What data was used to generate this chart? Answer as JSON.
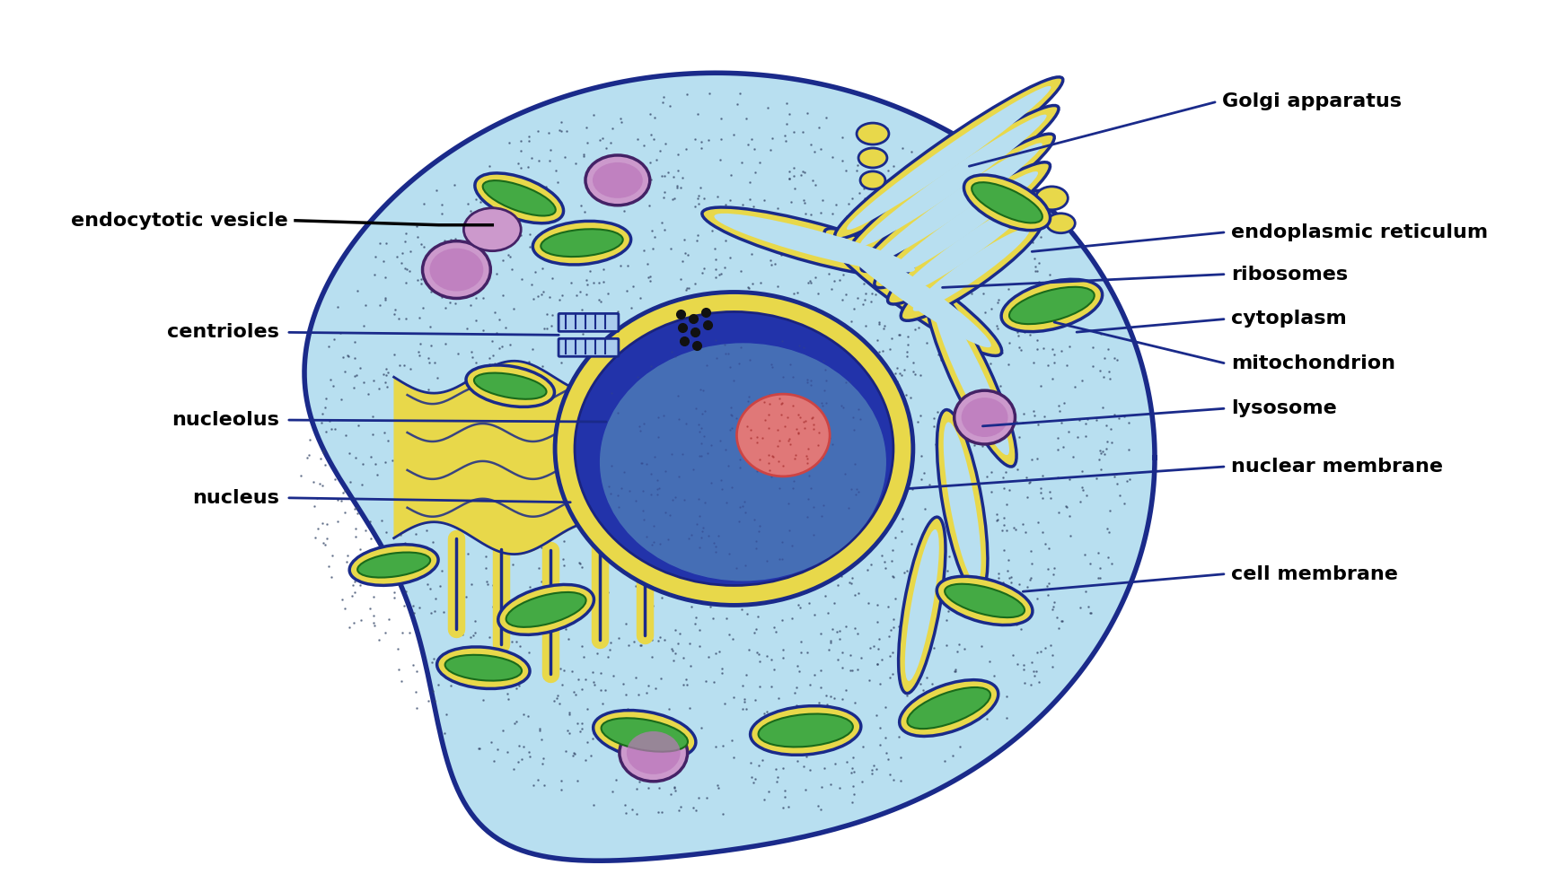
{
  "background_color": "#ffffff",
  "cell_outer_edge": "#1a2a8a",
  "cell_fill_light": "#b8dff0",
  "cell_fill_mid": "#8ec8e8",
  "nucleus_envelope_color": "#e8d84a",
  "nucleus_inner_color": "#2233aa",
  "nucleus_light_region": "#7ab8d8",
  "nucleolus_color": "#dd8888",
  "er_yellow": "#e8d84a",
  "er_edge": "#1a2a8a",
  "golgi_yellow": "#e8d84a",
  "golgi_edge": "#1a2a8a",
  "mito_outer": "#e8d84a",
  "mito_inner": "#3aaa44",
  "mito_edge": "#1a2a8a",
  "lysosome_fill": "#cc99cc",
  "lysosome_edge": "#442266",
  "ribosome_color": "#111122",
  "dot_color": "#334466",
  "label_color": "#000000",
  "line_color_right": "#1a2a8a",
  "line_color_left_vesicle": "#000000",
  "line_color_left": "#1a2a8a",
  "label_fontsize": 16,
  "label_fontweight": "bold",
  "labels": {
    "golgi_apparatus": "Golgi apparatus",
    "endoplasmic_reticulum": "endoplasmic reticulum",
    "ribosomes": "ribosomes",
    "cytoplasm": "cytoplasm",
    "mitochondrion": "mitochondrion",
    "lysosome": "lysosome",
    "nuclear_membrane": "nuclear membrane",
    "cell_membrane": "cell membrane",
    "endocytotic_vesicle": "endocytotic vesicle",
    "centrioles": "centrioles",
    "nucleolus": "nucleolus",
    "nucleus": "nucleus"
  }
}
